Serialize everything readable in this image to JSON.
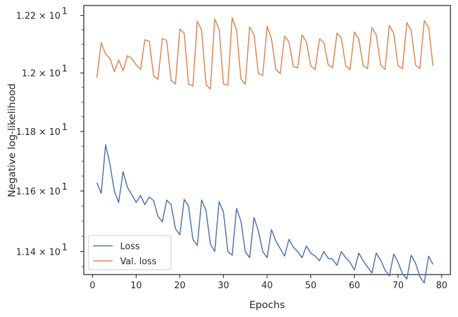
{
  "chart_data": {
    "type": "line",
    "title": "",
    "xlabel": "Epochs",
    "ylabel": "Negative log-likelihood",
    "xlim": [
      -2,
      82
    ],
    "ylim": [
      11.325,
      12.235
    ],
    "yscale": "log",
    "grid": false,
    "legend_position": "lower-left",
    "x_ticks": [
      0,
      10,
      20,
      30,
      40,
      50,
      60,
      70,
      80
    ],
    "x_tick_labels": [
      "0",
      "10",
      "20",
      "30",
      "40",
      "50",
      "60",
      "70",
      "80"
    ],
    "y_ticks": [
      {
        "value": 11.4,
        "mantissa": "1.14",
        "exp": "1"
      },
      {
        "value": 11.6,
        "mantissa": "1.16",
        "exp": "1"
      },
      {
        "value": 11.8,
        "mantissa": "1.18",
        "exp": "1"
      },
      {
        "value": 12.0,
        "mantissa": "1.2",
        "exp": "1"
      },
      {
        "value": 12.2,
        "mantissa": "1.22",
        "exp": "1"
      }
    ],
    "x": [
      1,
      2,
      3,
      4,
      5,
      6,
      7,
      8,
      9,
      10,
      11,
      12,
      13,
      14,
      15,
      16,
      17,
      18,
      19,
      20,
      21,
      22,
      23,
      24,
      25,
      26,
      27,
      28,
      29,
      30,
      31,
      32,
      33,
      34,
      35,
      36,
      37,
      38,
      39,
      40,
      41,
      42,
      43,
      44,
      45,
      46,
      47,
      48,
      49,
      50,
      51,
      52,
      53,
      54,
      55,
      56,
      57,
      58,
      59,
      60,
      61,
      62,
      63,
      64,
      65,
      66,
      67,
      68,
      69,
      70,
      71,
      72,
      73,
      74,
      75,
      76,
      77,
      78
    ],
    "series": [
      {
        "name": "Loss",
        "color": "#4c72b0",
        "values": [
          11.628,
          11.592,
          11.755,
          11.69,
          11.6,
          11.562,
          11.665,
          11.612,
          11.588,
          11.562,
          11.585,
          11.555,
          11.58,
          11.568,
          11.515,
          11.498,
          11.57,
          11.555,
          11.475,
          11.455,
          11.572,
          11.55,
          11.44,
          11.42,
          11.57,
          11.535,
          11.425,
          11.4,
          11.565,
          11.53,
          11.4,
          11.388,
          11.542,
          11.5,
          11.4,
          11.38,
          11.512,
          11.468,
          11.4,
          11.38,
          11.472,
          11.435,
          11.41,
          11.385,
          11.44,
          11.415,
          11.4,
          11.38,
          11.418,
          11.395,
          11.385,
          11.37,
          11.4,
          11.378,
          11.375,
          11.355,
          11.4,
          11.38,
          11.365,
          11.34,
          11.395,
          11.37,
          11.35,
          11.33,
          11.395,
          11.372,
          11.34,
          11.32,
          11.392,
          11.365,
          11.328,
          11.31,
          11.388,
          11.362,
          11.318,
          11.298,
          11.385,
          11.358
        ]
      },
      {
        "name": "Val. loss",
        "color": "#dd8452",
        "values": [
          11.985,
          12.105,
          12.065,
          12.05,
          12.005,
          12.045,
          12.008,
          12.06,
          12.05,
          12.028,
          12.012,
          12.115,
          12.11,
          11.99,
          11.978,
          12.12,
          12.112,
          11.975,
          11.962,
          12.152,
          12.138,
          11.962,
          11.955,
          12.18,
          12.148,
          11.96,
          11.945,
          12.188,
          12.152,
          11.962,
          11.958,
          12.192,
          12.148,
          11.98,
          11.962,
          12.16,
          12.132,
          11.998,
          11.992,
          12.162,
          12.118,
          12.012,
          11.998,
          12.128,
          12.108,
          12.022,
          12.018,
          12.132,
          12.108,
          12.025,
          12.012,
          12.118,
          12.105,
          12.028,
          12.018,
          12.138,
          12.122,
          12.025,
          12.012,
          12.142,
          12.118,
          12.025,
          12.015,
          12.158,
          12.132,
          12.028,
          12.012,
          12.165,
          12.138,
          12.025,
          12.015,
          12.175,
          12.148,
          12.028,
          12.015,
          12.182,
          12.158,
          12.025
        ]
      }
    ]
  }
}
